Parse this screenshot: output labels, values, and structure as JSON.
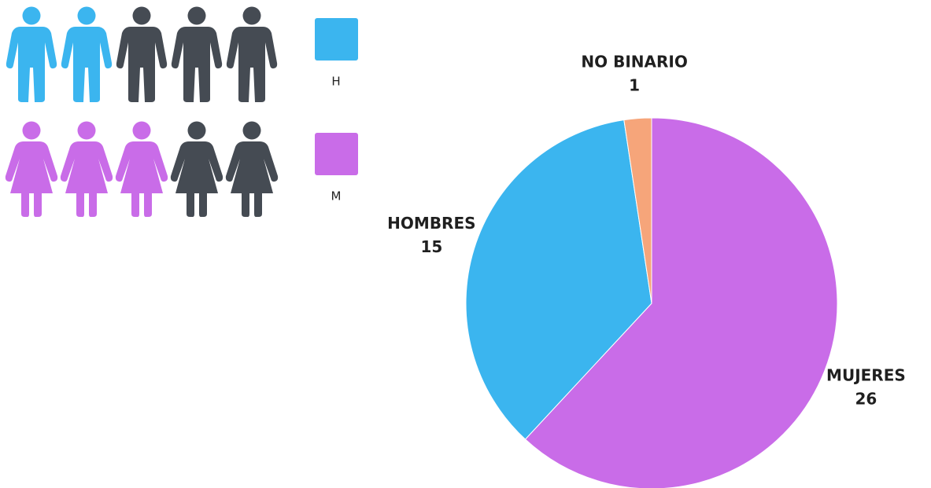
{
  "chart_data": [
    {
      "type": "pictogram",
      "categories": [
        "H",
        "M"
      ],
      "values": [
        2,
        3
      ],
      "max": 5,
      "colors": [
        "#3bb5ef",
        "#c96ce8"
      ],
      "empty_color": "#454b53"
    },
    {
      "type": "pie",
      "categories": [
        "MUJERES",
        "HOMBRES",
        "NO BINARIO"
      ],
      "values": [
        26,
        15,
        1
      ],
      "colors": [
        "#c96ce8",
        "#3bb5ef",
        "#f6a57a"
      ]
    }
  ]
}
